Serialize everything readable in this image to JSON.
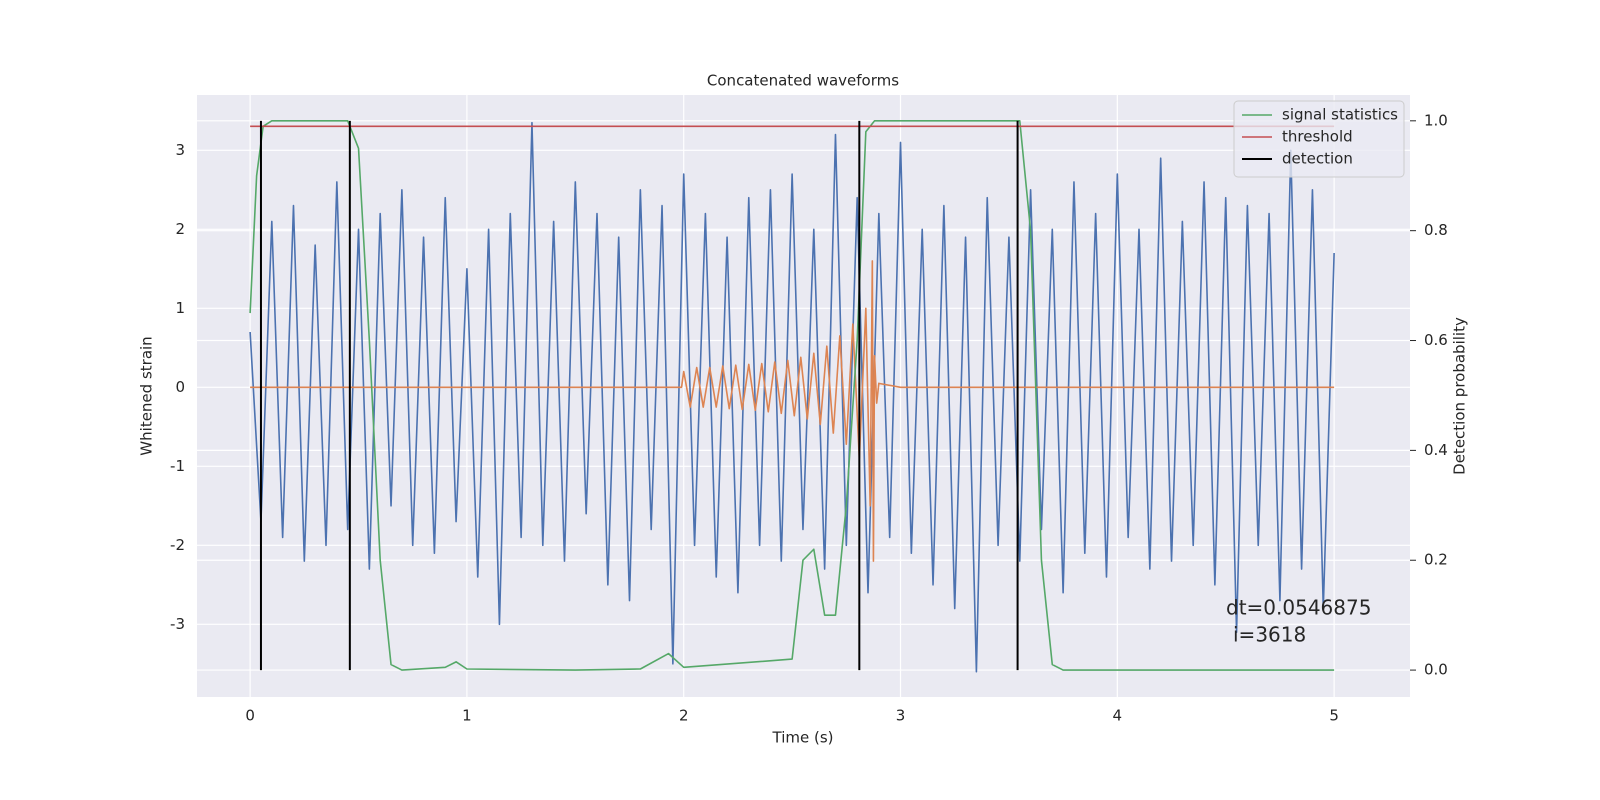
{
  "chart_data": {
    "type": "line",
    "title": "Concatenated waveforms",
    "xlabel": "Time (s)",
    "ylabel": "Whitened strain",
    "y2label": "Detection probability",
    "xlim": [
      -0.245,
      5.35
    ],
    "ylim": [
      -3.92,
      3.7
    ],
    "y2lim": [
      -0.049,
      1.047
    ],
    "xticks": [
      0,
      1,
      2,
      3,
      4,
      5
    ],
    "yticks": [
      -3,
      -2,
      -1,
      0,
      1,
      2,
      3
    ],
    "y2ticks": [
      {
        "value": 0,
        "label": "0.0"
      },
      {
        "value": 0.2,
        "label": "0.2"
      },
      {
        "value": 0.4,
        "label": "0.4"
      },
      {
        "value": 0.6,
        "label": "0.6"
      },
      {
        "value": 0.8,
        "label": "0.8"
      },
      {
        "value": 1,
        "label": "1.0"
      }
    ],
    "grid": true,
    "legend": "upper right",
    "annotations": [
      "dt=0.0546875",
      "i=3618"
    ],
    "series": [
      {
        "color": "#4c72b0",
        "axis": "y",
        "width": 1.6,
        "x": [
          0,
          0.05,
          0.1,
          0.15,
          0.2,
          0.25,
          0.3,
          0.35,
          0.4,
          0.45,
          0.5,
          0.55,
          0.6,
          0.65,
          0.7,
          0.75,
          0.8,
          0.85,
          0.9,
          0.95,
          1,
          1.05,
          1.1,
          1.15,
          1.2,
          1.25,
          1.3,
          1.35,
          1.4,
          1.45,
          1.5,
          1.55,
          1.6,
          1.65,
          1.7,
          1.75,
          1.8,
          1.85,
          1.9,
          1.95,
          2,
          2.05,
          2.1,
          2.15,
          2.2,
          2.25,
          2.3,
          2.35,
          2.4,
          2.45,
          2.5,
          2.55,
          2.6,
          2.65,
          2.7,
          2.75,
          2.8,
          2.85,
          2.9,
          2.95,
          3,
          3.05,
          3.1,
          3.15,
          3.2,
          3.25,
          3.3,
          3.35,
          3.4,
          3.45,
          3.5,
          3.55,
          3.6,
          3.65,
          3.7,
          3.75,
          3.8,
          3.85,
          3.9,
          3.95,
          4,
          4.05,
          4.1,
          4.15,
          4.2,
          4.25,
          4.3,
          4.35,
          4.4,
          4.45,
          4.5,
          4.55,
          4.6,
          4.65,
          4.7,
          4.75,
          4.8,
          4.85,
          4.9,
          4.95,
          5
        ],
        "values": [
          0.7,
          -1.7,
          2.1,
          -1.9,
          2.3,
          -2.2,
          1.8,
          -2.0,
          2.6,
          -1.8,
          2.0,
          -2.3,
          2.2,
          -1.5,
          2.5,
          -2.0,
          1.9,
          -2.1,
          2.4,
          -1.7,
          1.5,
          -2.4,
          2.0,
          -3.0,
          2.2,
          -1.9,
          3.35,
          -2.0,
          2.1,
          -2.2,
          2.6,
          -1.6,
          2.2,
          -2.5,
          1.9,
          -2.7,
          2.5,
          -1.8,
          2.3,
          -3.5,
          2.7,
          -2.0,
          2.2,
          -2.4,
          1.9,
          -2.6,
          2.4,
          -2.0,
          2.5,
          -2.2,
          2.7,
          -1.8,
          2.0,
          -2.3,
          3.2,
          -2.0,
          2.4,
          -2.6,
          2.2,
          -1.9,
          3.1,
          -2.1,
          2.0,
          -2.5,
          2.3,
          -2.8,
          1.9,
          -3.6,
          2.4,
          -2.0,
          1.9,
          -2.2,
          2.5,
          -1.8,
          2.0,
          -2.6,
          2.6,
          -2.1,
          2.2,
          -2.4,
          2.7,
          -1.9,
          2.0,
          -2.3,
          2.9,
          -2.2,
          2.1,
          -2.0,
          2.6,
          -2.5,
          2.4,
          -3.1,
          2.3,
          -2.0,
          2.2,
          -2.7,
          3.0,
          -2.3,
          2.5,
          -2.8,
          1.7
        ]
      },
      {
        "color": "#dd8452",
        "axis": "y",
        "width": 1.6,
        "x": [
          0,
          1.99,
          2.0,
          2.03,
          2.06,
          2.09,
          2.12,
          2.15,
          2.18,
          2.21,
          2.24,
          2.27,
          2.3,
          2.33,
          2.36,
          2.39,
          2.42,
          2.45,
          2.48,
          2.51,
          2.54,
          2.57,
          2.6,
          2.63,
          2.66,
          2.69,
          2.72,
          2.75,
          2.78,
          2.81,
          2.84,
          2.86,
          2.87,
          2.875,
          2.88,
          2.89,
          2.9,
          3.0,
          5.0
        ],
        "values": [
          0,
          0,
          0.2,
          -0.25,
          0.25,
          -0.25,
          0.25,
          -0.25,
          0.27,
          -0.27,
          0.28,
          -0.28,
          0.29,
          -0.29,
          0.3,
          -0.31,
          0.32,
          -0.33,
          0.34,
          -0.36,
          0.38,
          -0.4,
          0.43,
          -0.47,
          0.52,
          -0.58,
          0.65,
          -0.72,
          0.8,
          -0.9,
          1.0,
          -1.5,
          1.6,
          -2.2,
          0.4,
          -0.2,
          0.05,
          0,
          0
        ]
      },
      {
        "name": "signal statistics",
        "color": "#55a868",
        "axis": "y2",
        "width": 1.6,
        "x": [
          0,
          0.03,
          0.06,
          0.1,
          0.45,
          0.5,
          0.55,
          0.6,
          0.65,
          0.7,
          0.9,
          0.95,
          1.0,
          1.5,
          1.8,
          1.93,
          2.0,
          2.5,
          2.55,
          2.6,
          2.65,
          2.7,
          2.75,
          2.8,
          2.84,
          2.88,
          3.55,
          3.6,
          3.65,
          3.7,
          3.75,
          5.0
        ],
        "values": [
          0.65,
          0.9,
          0.99,
          1.0,
          1.0,
          0.95,
          0.6,
          0.2,
          0.01,
          0.0,
          0.005,
          0.015,
          0.002,
          0.0,
          0.002,
          0.03,
          0.005,
          0.02,
          0.2,
          0.22,
          0.1,
          0.1,
          0.3,
          0.6,
          0.98,
          1.0,
          1.0,
          0.8,
          0.2,
          0.01,
          0.0,
          0.0
        ]
      },
      {
        "name": "threshold",
        "color": "#c44e52",
        "axis": "y2",
        "width": 1.6,
        "x": [
          0,
          5
        ],
        "values": [
          0.99,
          0.99
        ]
      },
      {
        "name": "detection",
        "color": "#000000",
        "axis": "y2",
        "kind": "vlines",
        "width": 2,
        "x": [
          0.05,
          0.46,
          2.81,
          3.54
        ],
        "ymin": 0,
        "ymax": 1
      }
    ]
  }
}
